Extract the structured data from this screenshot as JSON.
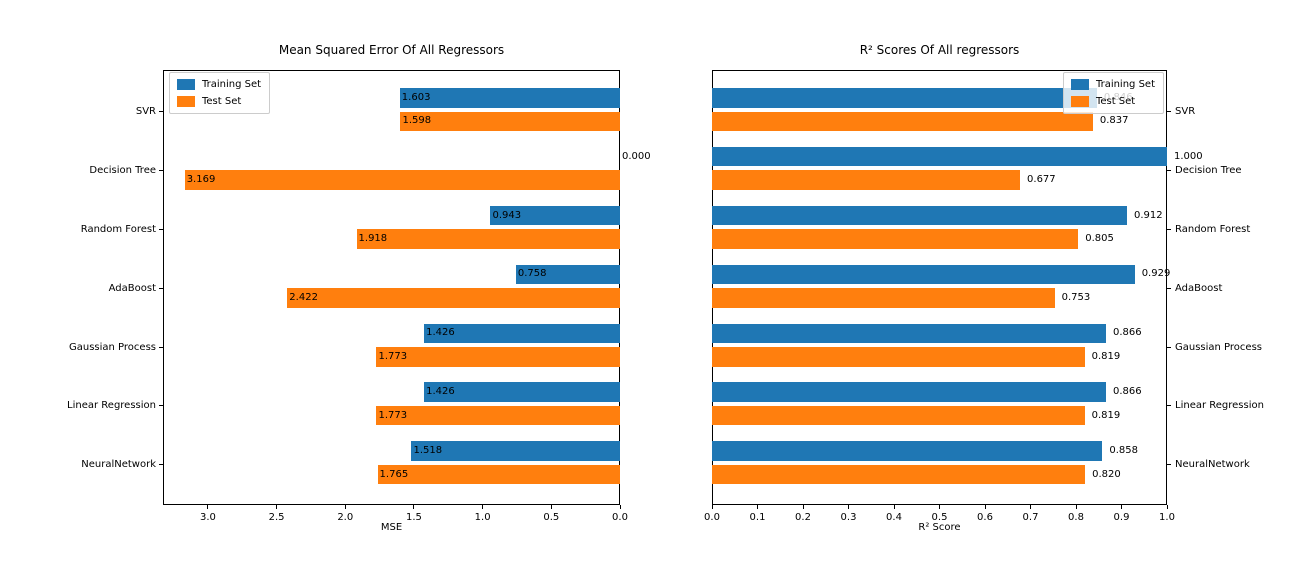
{
  "figure": {
    "background": "#ffffff"
  },
  "colors": {
    "training": "#1f77b4",
    "test": "#ff7f0e",
    "text": "#000000",
    "spine": "#000000",
    "legend_border": "#cccccc"
  },
  "legend": {
    "items": [
      {
        "label": "Training Set",
        "color_key": "training"
      },
      {
        "label": "Test Set",
        "color_key": "test"
      }
    ]
  },
  "chart_data": [
    {
      "type": "bar",
      "orientation": "horizontal",
      "title": "Mean Squared Error Of All Regressors",
      "xlabel": "MSE",
      "categories": [
        "SVR",
        "Decision Tree",
        "Random Forest",
        "AdaBoost",
        "Gaussian Process",
        "Linear Regression",
        "NeuralNetwork"
      ],
      "series": [
        {
          "name": "Training Set",
          "values": [
            1.603,
            0.0,
            0.943,
            0.758,
            1.426,
            1.426,
            1.518
          ]
        },
        {
          "name": "Test Set",
          "values": [
            1.598,
            3.169,
            1.918,
            2.422,
            1.773,
            1.773,
            1.765
          ]
        }
      ],
      "value_label_decimals": 3,
      "xlim": [
        3.327,
        0.0
      ],
      "xticks": [
        3.0,
        2.5,
        2.0,
        1.5,
        1.0,
        0.5,
        0.0
      ],
      "axis_inverted": true,
      "grid": false,
      "ylabels_side": "left",
      "legend_position": "upper-left"
    },
    {
      "type": "bar",
      "orientation": "horizontal",
      "title": "R² Scores Of All regressors",
      "xlabel": "R² Score",
      "categories": [
        "SVR",
        "Decision Tree",
        "Random Forest",
        "AdaBoost",
        "Gaussian Process",
        "Linear Regression",
        "NeuralNetwork"
      ],
      "series": [
        {
          "name": "Training Set",
          "values": [
            0.846,
            1.0,
            0.912,
            0.929,
            0.866,
            0.866,
            0.858
          ]
        },
        {
          "name": "Test Set",
          "values": [
            0.837,
            0.677,
            0.805,
            0.753,
            0.819,
            0.819,
            0.82
          ]
        }
      ],
      "value_label_decimals": 3,
      "xlim": [
        0.0,
        1.0
      ],
      "xticks": [
        0.0,
        0.1,
        0.2,
        0.3,
        0.4,
        0.5,
        0.6,
        0.7,
        0.8,
        0.9,
        1.0
      ],
      "axis_inverted": false,
      "grid": false,
      "ylabels_side": "right",
      "legend_position": "upper-right"
    }
  ]
}
